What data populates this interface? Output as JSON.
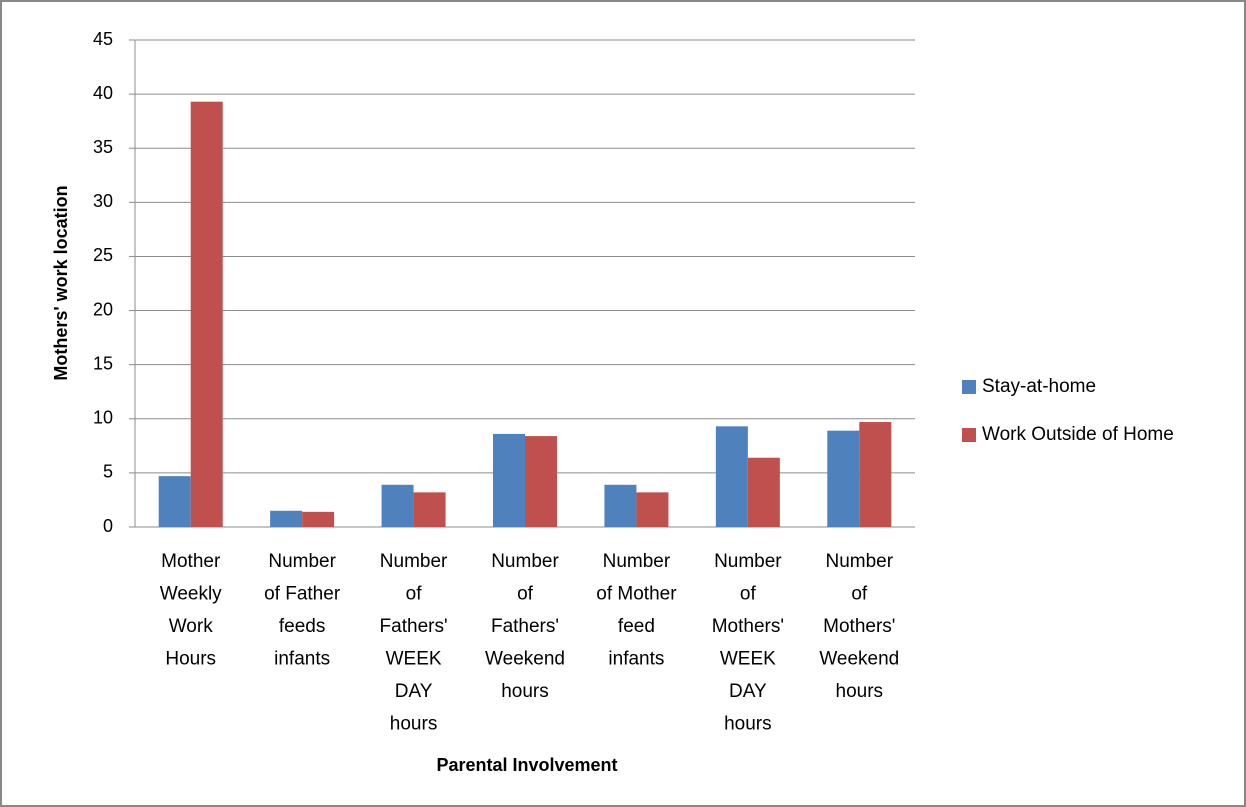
{
  "chart_data": {
    "type": "bar",
    "categories": [
      "Mother\nWeekly\nWork\nHours",
      "Number\nof Father\nfeeds\ninfants",
      "Number\nof\nFathers'\nWEEK\nDAY\nhours",
      "Number\nof\nFathers'\nWeekend\nhours",
      "Number\nof Mother\nfeed\ninfants",
      "Number\nof\nMothers'\nWEEK\nDAY\nhours",
      "Number\nof\nMothers'\nWeekend\nhours"
    ],
    "series": [
      {
        "name": "Stay-at-home",
        "color": "#4f81bd",
        "values": [
          4.7,
          1.5,
          3.9,
          8.6,
          3.9,
          9.3,
          8.9
        ]
      },
      {
        "name": "Work Outside of Home",
        "color": "#c0504d",
        "values": [
          39.3,
          1.4,
          3.2,
          8.4,
          3.2,
          6.4,
          9.7
        ]
      }
    ],
    "xlabel": "Parental Involvement",
    "ylabel": "Mothers' work location",
    "ylim": [
      0,
      45
    ],
    "yticks": [
      0,
      5,
      10,
      15,
      20,
      25,
      30,
      35,
      40,
      45
    ],
    "grid": true,
    "legend": "right"
  }
}
